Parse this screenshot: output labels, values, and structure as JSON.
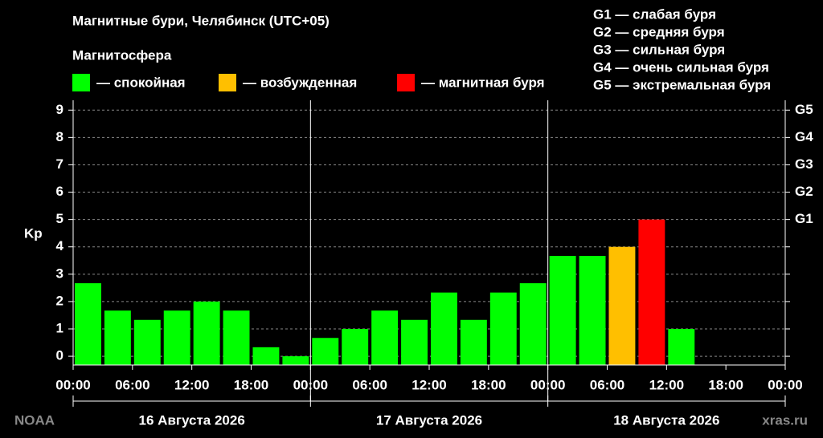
{
  "chart_data": {
    "type": "bar",
    "title": "Магнитные бури, Челябинск (UTC+05)",
    "legend_title": "Магнитосфера",
    "legend": [
      {
        "label": "— спокойная",
        "color": "#00ff00"
      },
      {
        "label": "— возбужденная",
        "color": "#ffbf00"
      },
      {
        "label": "— магнитная буря",
        "color": "#ff0000"
      }
    ],
    "storm_scale": [
      "G1 — слабая буря",
      "G2 — средняя буря",
      "G3 — сильная буря",
      "G4 — очень сильная буря",
      "G5 — экстремальная буря"
    ],
    "y_label": "Kp",
    "x": [
      0,
      3,
      6,
      9,
      12,
      15,
      18,
      21,
      24,
      27,
      30,
      33,
      36,
      39,
      42,
      45,
      48,
      51,
      54,
      57,
      60
    ],
    "values": [
      2.67,
      1.67,
      1.33,
      1.67,
      2,
      1.67,
      0.33,
      0,
      0.67,
      1,
      1.67,
      1.33,
      2.33,
      1.33,
      2.33,
      2.67,
      3.67,
      3.67,
      4,
      5,
      1
    ],
    "colors": [
      "#00ff00",
      "#00ff00",
      "#00ff00",
      "#00ff00",
      "#00ff00",
      "#00ff00",
      "#00ff00",
      "#00ff00",
      "#00ff00",
      "#00ff00",
      "#00ff00",
      "#00ff00",
      "#00ff00",
      "#00ff00",
      "#00ff00",
      "#00ff00",
      "#00ff00",
      "#00ff00",
      "#ffbf00",
      "#ff0000",
      "#00ff00"
    ],
    "xlim": [
      0,
      72
    ],
    "xticks": [
      {
        "value": 0,
        "label": "00:00"
      },
      {
        "value": 6,
        "label": "06:00"
      },
      {
        "value": 12,
        "label": "12:00"
      },
      {
        "value": 18,
        "label": "18:00"
      },
      {
        "value": 24,
        "label": "00:00"
      },
      {
        "value": 30,
        "label": "06:00"
      },
      {
        "value": 36,
        "label": "12:00"
      },
      {
        "value": 42,
        "label": "18:00"
      },
      {
        "value": 48,
        "label": "00:00"
      },
      {
        "value": 54,
        "label": "06:00"
      },
      {
        "value": 60,
        "label": "12:00"
      },
      {
        "value": 66,
        "label": "18:00"
      },
      {
        "value": 72,
        "label": "00:00"
      }
    ],
    "days": [
      "16 Августа 2026",
      "17 Августа 2026",
      "18 Августа 2026"
    ],
    "ylim": [
      -0.32,
      9.36
    ],
    "yticks": [
      0,
      1,
      2,
      3,
      4,
      5,
      6,
      7,
      8,
      9
    ],
    "y2ticks": [
      {
        "value": 5,
        "label": "G1"
      },
      {
        "value": 6,
        "label": "G2"
      },
      {
        "value": 7,
        "label": "G3"
      },
      {
        "value": 8,
        "label": "G4"
      },
      {
        "value": 9,
        "label": "G5"
      }
    ],
    "grid": true,
    "source": "NOAA",
    "site": "xras.ru"
  }
}
